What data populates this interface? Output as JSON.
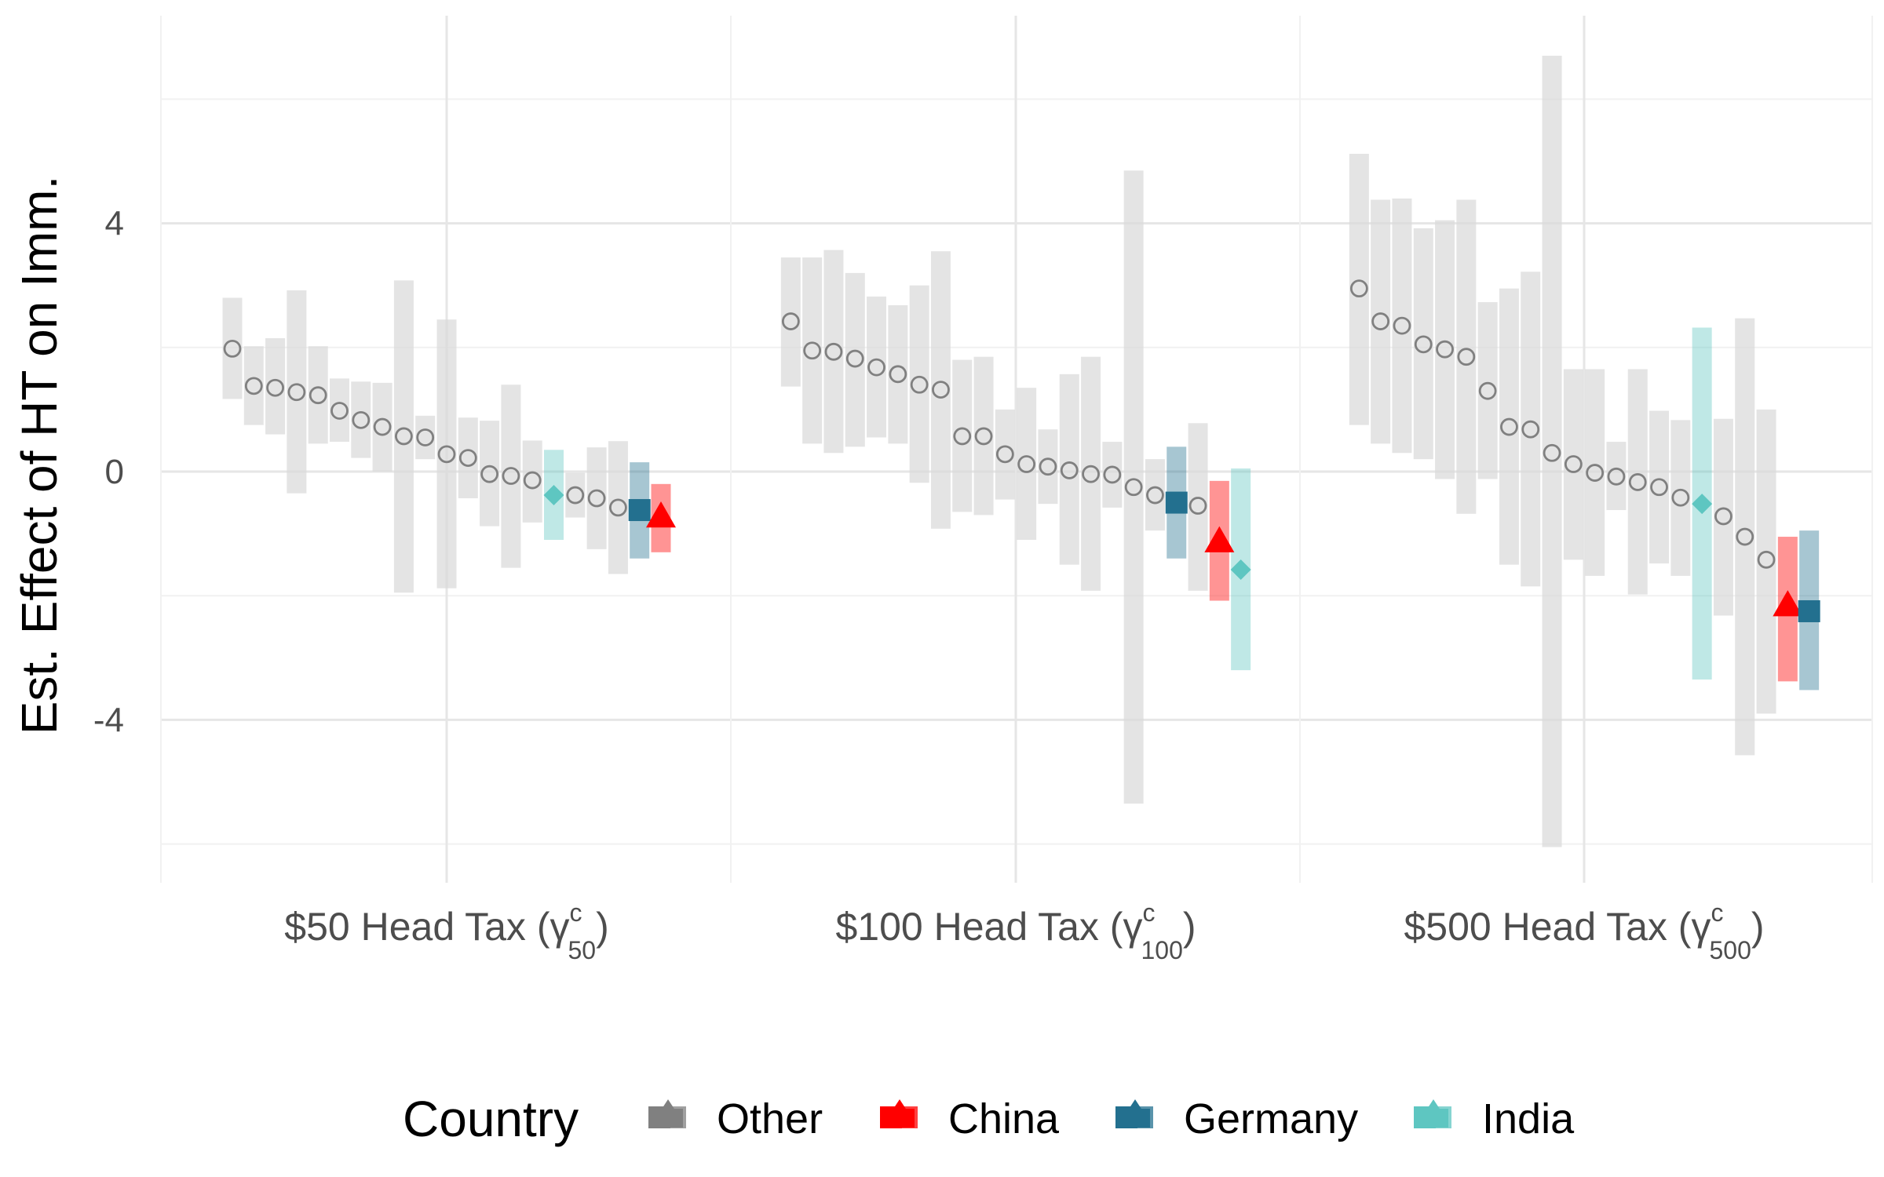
{
  "chart_data": {
    "type": "scatter",
    "title": "",
    "xlabel": "",
    "ylabel": "Est. Effect of HT on Imm.",
    "ylim": [
      -6.6,
      7.2
    ],
    "yticks": [
      {
        "value": 4,
        "label": "4"
      },
      {
        "value": 0,
        "label": "0"
      },
      {
        "value": -4,
        "label": "-4"
      }
    ],
    "grid": true,
    "legend": {
      "title": "Country",
      "position": "bottom",
      "entries": [
        {
          "name": "Other",
          "color": "#808080"
        },
        {
          "name": "China",
          "color": "#ff0000"
        },
        {
          "name": "Germany",
          "color": "#23708f"
        },
        {
          "name": "India",
          "color": "#5ec6c1"
        }
      ]
    },
    "panels": [
      {
        "label": {
          "main": "$50 Head Tax (γ",
          "sup": "c",
          "sub": "50",
          "close": ")"
        },
        "points": [
          {
            "country": "Other",
            "est": 1.98,
            "lo": 1.17,
            "hi": 2.8
          },
          {
            "country": "Other",
            "est": 1.38,
            "lo": 0.75,
            "hi": 2.02
          },
          {
            "country": "Other",
            "est": 1.35,
            "lo": 0.6,
            "hi": 2.15
          },
          {
            "country": "Other",
            "est": 1.28,
            "lo": -0.35,
            "hi": 2.92
          },
          {
            "country": "Other",
            "est": 1.23,
            "lo": 0.45,
            "hi": 2.02
          },
          {
            "country": "Other",
            "est": 0.98,
            "lo": 0.48,
            "hi": 1.5
          },
          {
            "country": "Other",
            "est": 0.83,
            "lo": 0.22,
            "hi": 1.45
          },
          {
            "country": "Other",
            "est": 0.72,
            "lo": 0.0,
            "hi": 1.43
          },
          {
            "country": "Other",
            "est": 0.57,
            "lo": -1.95,
            "hi": 3.08
          },
          {
            "country": "Other",
            "est": 0.55,
            "lo": 0.2,
            "hi": 0.9
          },
          {
            "country": "Other",
            "est": 0.28,
            "lo": -1.88,
            "hi": 2.45
          },
          {
            "country": "Other",
            "est": 0.22,
            "lo": -0.43,
            "hi": 0.87
          },
          {
            "country": "Other",
            "est": -0.04,
            "lo": -0.88,
            "hi": 0.82
          },
          {
            "country": "Other",
            "est": -0.07,
            "lo": -1.55,
            "hi": 1.4
          },
          {
            "country": "Other",
            "est": -0.14,
            "lo": -0.82,
            "hi": 0.5
          },
          {
            "country": "India",
            "est": -0.38,
            "lo": -1.1,
            "hi": 0.35
          },
          {
            "country": "Other",
            "est": -0.38,
            "lo": -0.74,
            "hi": -0.02
          },
          {
            "country": "Other",
            "est": -0.43,
            "lo": -1.25,
            "hi": 0.39
          },
          {
            "country": "Other",
            "est": -0.58,
            "lo": -1.65,
            "hi": 0.49
          },
          {
            "country": "Germany",
            "est": -0.62,
            "lo": -1.4,
            "hi": 0.15
          },
          {
            "country": "China",
            "est": -0.72,
            "lo": -1.3,
            "hi": -0.2
          }
        ]
      },
      {
        "label": {
          "main": "$100 Head Tax (γ",
          "sup": "c",
          "sub": "100",
          "close": ")"
        },
        "points": [
          {
            "country": "Other",
            "est": 2.42,
            "lo": 1.37,
            "hi": 3.45
          },
          {
            "country": "Other",
            "est": 1.95,
            "lo": 0.45,
            "hi": 3.45
          },
          {
            "country": "Other",
            "est": 1.93,
            "lo": 0.3,
            "hi": 3.57
          },
          {
            "country": "Other",
            "est": 1.82,
            "lo": 0.4,
            "hi": 3.2
          },
          {
            "country": "Other",
            "est": 1.68,
            "lo": 0.55,
            "hi": 2.82
          },
          {
            "country": "Other",
            "est": 1.57,
            "lo": 0.45,
            "hi": 2.68
          },
          {
            "country": "Other",
            "est": 1.4,
            "lo": -0.18,
            "hi": 3.0
          },
          {
            "country": "Other",
            "est": 1.32,
            "lo": -0.92,
            "hi": 3.55
          },
          {
            "country": "Other",
            "est": 0.57,
            "lo": -0.65,
            "hi": 1.8
          },
          {
            "country": "Other",
            "est": 0.57,
            "lo": -0.7,
            "hi": 1.85
          },
          {
            "country": "Other",
            "est": 0.28,
            "lo": -0.45,
            "hi": 1.0
          },
          {
            "country": "Other",
            "est": 0.12,
            "lo": -1.1,
            "hi": 1.35
          },
          {
            "country": "Other",
            "est": 0.08,
            "lo": -0.52,
            "hi": 0.68
          },
          {
            "country": "Other",
            "est": 0.02,
            "lo": -1.5,
            "hi": 1.57
          },
          {
            "country": "Other",
            "est": -0.04,
            "lo": -1.92,
            "hi": 1.85
          },
          {
            "country": "Other",
            "est": -0.05,
            "lo": -0.58,
            "hi": 0.48
          },
          {
            "country": "Other",
            "est": -0.25,
            "lo": -5.35,
            "hi": 4.85
          },
          {
            "country": "Other",
            "est": -0.38,
            "lo": -0.95,
            "hi": 0.2
          },
          {
            "country": "Germany",
            "est": -0.5,
            "lo": -1.4,
            "hi": 0.4
          },
          {
            "country": "Other",
            "est": -0.55,
            "lo": -1.92,
            "hi": 0.78
          },
          {
            "country": "China",
            "est": -1.12,
            "lo": -2.08,
            "hi": -0.15
          },
          {
            "country": "India",
            "est": -1.58,
            "lo": -3.2,
            "hi": 0.05
          }
        ]
      },
      {
        "label": {
          "main": "$500 Head Tax (γ",
          "sup": "c",
          "sub": "500",
          "close": ")"
        },
        "points": [
          {
            "country": "Other",
            "est": 2.95,
            "lo": 0.75,
            "hi": 5.12
          },
          {
            "country": "Other",
            "est": 2.42,
            "lo": 0.45,
            "hi": 4.38
          },
          {
            "country": "Other",
            "est": 2.35,
            "lo": 0.3,
            "hi": 4.4
          },
          {
            "country": "Other",
            "est": 2.05,
            "lo": 0.2,
            "hi": 3.92
          },
          {
            "country": "Other",
            "est": 1.97,
            "lo": -0.12,
            "hi": 4.05
          },
          {
            "country": "Other",
            "est": 1.85,
            "lo": -0.68,
            "hi": 4.38
          },
          {
            "country": "Other",
            "est": 1.3,
            "lo": -0.12,
            "hi": 2.73
          },
          {
            "country": "Other",
            "est": 0.72,
            "lo": -1.5,
            "hi": 2.95
          },
          {
            "country": "Other",
            "est": 0.68,
            "lo": -1.85,
            "hi": 3.22
          },
          {
            "country": "Other",
            "est": 0.3,
            "lo": -6.05,
            "hi": 6.7
          },
          {
            "country": "Other",
            "est": 0.12,
            "lo": -1.42,
            "hi": 1.65
          },
          {
            "country": "Other",
            "est": -0.02,
            "lo": -1.68,
            "hi": 1.65
          },
          {
            "country": "Other",
            "est": -0.08,
            "lo": -0.62,
            "hi": 0.48
          },
          {
            "country": "Other",
            "est": -0.17,
            "lo": -1.98,
            "hi": 1.65
          },
          {
            "country": "Other",
            "est": -0.25,
            "lo": -1.48,
            "hi": 0.98
          },
          {
            "country": "Other",
            "est": -0.42,
            "lo": -1.68,
            "hi": 0.83
          },
          {
            "country": "India",
            "est": -0.52,
            "lo": -3.35,
            "hi": 2.32
          },
          {
            "country": "Other",
            "est": -0.72,
            "lo": -2.32,
            "hi": 0.85
          },
          {
            "country": "Other",
            "est": -1.05,
            "lo": -4.57,
            "hi": 2.47
          },
          {
            "country": "Other",
            "est": -1.42,
            "lo": -3.9,
            "hi": 1.0
          },
          {
            "country": "China",
            "est": -2.15,
            "lo": -3.38,
            "hi": -1.05
          },
          {
            "country": "Germany",
            "est": -2.25,
            "lo": -3.52,
            "hi": -0.95
          }
        ]
      }
    ]
  }
}
